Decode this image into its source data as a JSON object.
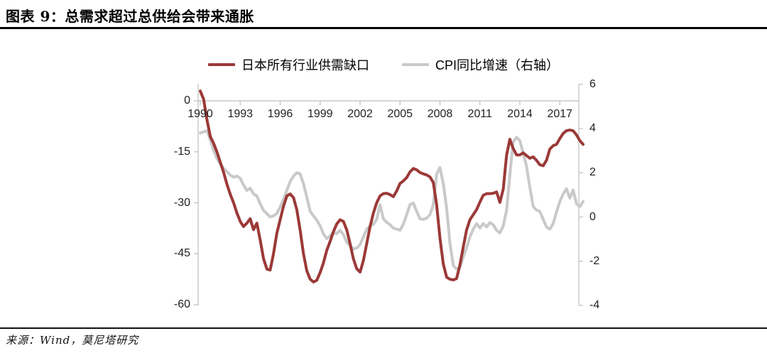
{
  "header": {
    "title": "图表 9：总需求超过总供给会带来通胀"
  },
  "footer": {
    "source": "来源：Wind，莫尼塔研究"
  },
  "colors": {
    "series_gap": "#9B3937",
    "series_cpi": "#C9C9C9",
    "axis_line": "#BFBFBF",
    "tick_text": "#1f1f1f",
    "rule": "#000000"
  },
  "legend": {
    "items": [
      {
        "label": "日本所有行业供需缺口",
        "color": "#9B3937"
      },
      {
        "label": "CPI同比增速（右轴）",
        "color": "#C9C9C9"
      }
    ]
  },
  "chart_data": {
    "type": "line",
    "title": "",
    "xlabel": "",
    "ylabel_left": "",
    "ylabel_right": "",
    "x_start_year": 1990,
    "x_step_years": 0.25,
    "x_tick_labels": [
      "1990",
      "1993",
      "1996",
      "1999",
      "2002",
      "2005",
      "2008",
      "2011",
      "2014",
      "2017"
    ],
    "left_axis": {
      "ticks": [
        "0",
        "-15",
        "-30",
        "-45",
        "-60"
      ],
      "min": -60,
      "max": 5,
      "applies_to": "日本所有行业供需缺口"
    },
    "right_axis": {
      "ticks": [
        "6",
        "4",
        "2",
        "0",
        "-2",
        "-4"
      ],
      "min": -4,
      "max": 6,
      "applies_to": "CPI同比增速"
    },
    "grid": "horizontal zero-line only, x ticks hang below it",
    "legend_position": "top-center",
    "series": [
      {
        "name": "日本所有行业供需缺口",
        "axis": "left",
        "color": "#9B3937",
        "values": [
          2.9,
          0.5,
          -5.5,
          -10.5,
          -12.5,
          -15,
          -18,
          -21,
          -24.5,
          -27.5,
          -30,
          -33,
          -35.5,
          -37,
          -36,
          -34.7,
          -37.9,
          -36,
          -41,
          -46.5,
          -49.5,
          -49.8,
          -45,
          -39,
          -35,
          -31,
          -28,
          -27.4,
          -28.5,
          -32,
          -38,
          -45,
          -50,
          -52.5,
          -53.3,
          -52.8,
          -50.5,
          -47.7,
          -44,
          -41.4,
          -38.5,
          -36.2,
          -35,
          -35.5,
          -38,
          -42,
          -46.5,
          -49.4,
          -50.4,
          -47,
          -42,
          -37,
          -33,
          -30,
          -28,
          -27.3,
          -27.2,
          -27.6,
          -28.2,
          -26.5,
          -24.3,
          -23.6,
          -22.6,
          -20.9,
          -19.9,
          -20.3,
          -21.1,
          -21.5,
          -21.8,
          -22.4,
          -24,
          -30.5,
          -40.4,
          -48,
          -51.9,
          -52.5,
          -52.7,
          -52.3,
          -48.3,
          -43,
          -38,
          -35,
          -33.5,
          -32,
          -29.8,
          -27.8,
          -27.3,
          -27.3,
          -27.2,
          -26.8,
          -29.9,
          -26,
          -16,
          -11.3,
          -14,
          -15.9,
          -15.9,
          -15.3,
          -16.1,
          -16.9,
          -16.5,
          -17.5,
          -18.8,
          -19.1,
          -17.5,
          -14.2,
          -13.2,
          -12.8,
          -11.1,
          -9.6,
          -8.8,
          -8.6,
          -8.8,
          -10,
          -11.7,
          -12.8
        ]
      },
      {
        "name": "CPI同比增速（右轴）",
        "axis": "right",
        "color": "#C9C9C9",
        "values": [
          3.8,
          3.85,
          3.9,
          3.5,
          3.0,
          2.65,
          2.4,
          2.2,
          2.05,
          1.9,
          1.8,
          1.85,
          1.75,
          1.45,
          1.2,
          1.3,
          1.05,
          0.95,
          0.6,
          0.3,
          0.15,
          0,
          0.05,
          0.15,
          0.45,
          0.8,
          1.2,
          1.6,
          1.85,
          2.0,
          1.95,
          1.5,
          0.9,
          0.26,
          0.05,
          -0.15,
          -0.4,
          -0.76,
          -0.98,
          -0.85,
          -0.7,
          -0.75,
          -0.6,
          -0.8,
          -1.14,
          -1.3,
          -1.45,
          -1.4,
          -1.25,
          -0.9,
          -0.55,
          -0.4,
          -0.33,
          -0.11,
          0.56,
          -0.08,
          -0.24,
          -0.35,
          -0.5,
          -0.55,
          -0.6,
          -0.33,
          0.1,
          0.56,
          0.63,
          0.25,
          -0.08,
          -0.11,
          -0.05,
          0.1,
          0.56,
          1.93,
          2.24,
          1.5,
          0.4,
          -1.2,
          -2.2,
          -2.35,
          -2.3,
          -1.8,
          -1.4,
          -0.9,
          -0.55,
          -0.3,
          -0.5,
          -0.3,
          -0.45,
          -0.25,
          -0.35,
          -0.6,
          -0.72,
          -0.4,
          0.3,
          1.9,
          3.4,
          3.6,
          3.45,
          2.88,
          2.3,
          1.34,
          0.47,
          0.31,
          0.25,
          -0.1,
          -0.45,
          -0.55,
          -0.3,
          0.22,
          0.7,
          1.03,
          1.28,
          0.85,
          1.22,
          0.6,
          0.47,
          0.7
        ]
      }
    ]
  }
}
